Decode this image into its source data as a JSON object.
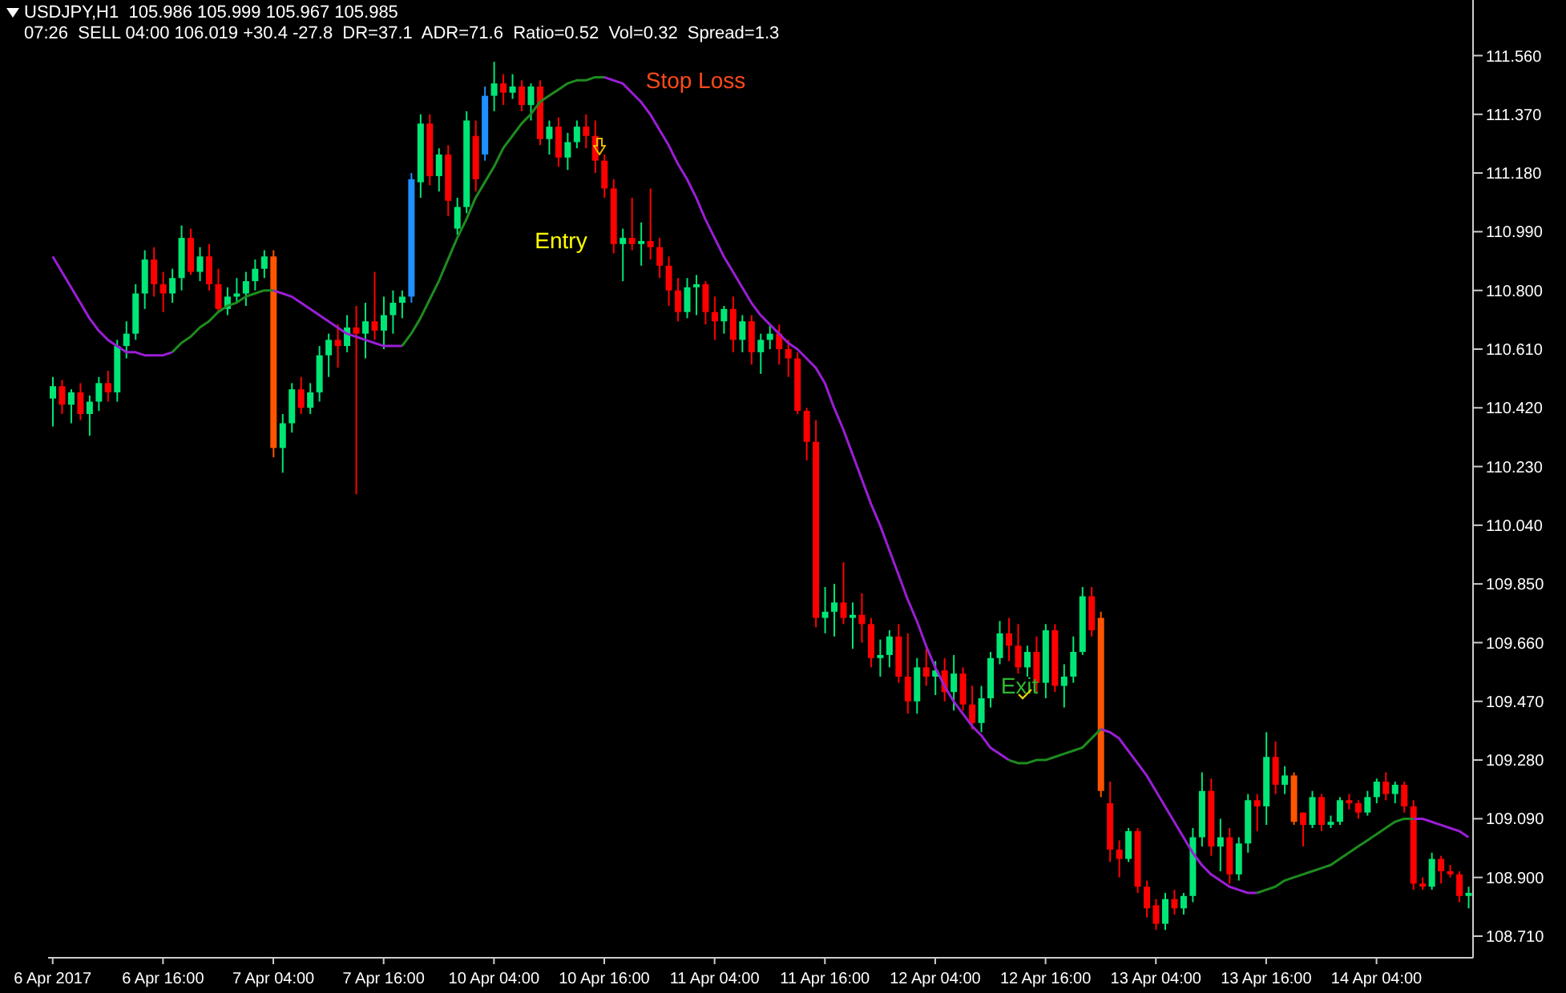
{
  "chart_data": {
    "type": "candlestick",
    "title": "USDJPY,H1  105.986 105.999 105.967 105.985",
    "subtitle": "07:26  SELL 04:00 106.019 +30.4 -27.8  DR=37.1  ADR=71.6  Ratio=0.52  Vol=0.32  Spread=1.3",
    "categories": [
      "6 Apr 2017",
      null,
      null,
      null,
      null,
      null,
      null,
      null,
      null,
      null,
      null,
      null,
      "6 Apr 16:00",
      null,
      null,
      null,
      null,
      null,
      null,
      null,
      null,
      null,
      null,
      null,
      "7 Apr 04:00",
      null,
      null,
      null,
      null,
      null,
      null,
      null,
      null,
      null,
      null,
      null,
      "7 Apr 16:00",
      null,
      null,
      null,
      null,
      null,
      null,
      null,
      null,
      null,
      null,
      null,
      "10 Apr 04:00",
      null,
      null,
      null,
      null,
      null,
      null,
      null,
      null,
      null,
      null,
      null,
      "10 Apr 16:00",
      null,
      null,
      null,
      null,
      null,
      null,
      null,
      null,
      null,
      null,
      null,
      "11 Apr 04:00",
      null,
      null,
      null,
      null,
      null,
      null,
      null,
      null,
      null,
      null,
      null,
      "11 Apr 16:00",
      null,
      null,
      null,
      null,
      null,
      null,
      null,
      null,
      null,
      null,
      null,
      "12 Apr 04:00",
      null,
      null,
      null,
      null,
      null,
      null,
      null,
      null,
      null,
      null,
      null,
      "12 Apr 16:00",
      null,
      null,
      null,
      null,
      null,
      null,
      null,
      null,
      null,
      null,
      null,
      "13 Apr 04:00",
      null,
      null,
      null,
      null,
      null,
      null,
      null,
      null,
      null,
      null,
      null,
      "13 Apr 16:00",
      null,
      null,
      null,
      null,
      null,
      null,
      null,
      null,
      null,
      null,
      null,
      "14 Apr 04:00",
      null,
      null,
      null,
      null,
      null,
      null,
      null,
      null,
      null,
      null
    ],
    "series": [
      {
        "ohlc": [
          [
            110.45,
            110.52,
            110.36,
            110.49
          ],
          [
            110.49,
            110.51,
            110.4,
            110.43
          ],
          [
            110.43,
            110.48,
            110.37,
            110.47
          ],
          [
            110.47,
            110.5,
            110.38,
            110.4
          ],
          [
            110.4,
            110.46,
            110.33,
            110.44
          ],
          [
            110.44,
            110.52,
            110.41,
            110.5
          ],
          [
            110.5,
            110.54,
            110.44,
            110.47
          ],
          [
            110.47,
            110.64,
            110.44,
            110.62
          ],
          [
            110.62,
            110.7,
            110.58,
            110.66
          ],
          [
            110.66,
            110.82,
            110.64,
            110.79
          ],
          [
            110.79,
            110.93,
            110.74,
            110.9
          ],
          [
            110.9,
            110.94,
            110.78,
            110.82
          ],
          [
            110.82,
            110.86,
            110.73,
            110.79
          ],
          [
            110.79,
            110.87,
            110.76,
            110.84
          ],
          [
            110.84,
            111.01,
            110.8,
            110.97
          ],
          [
            110.97,
            111.0,
            110.85,
            110.86
          ],
          [
            110.86,
            110.94,
            110.83,
            110.91
          ],
          [
            110.91,
            110.95,
            110.8,
            110.82
          ],
          [
            110.82,
            110.87,
            110.73,
            110.74
          ],
          [
            110.74,
            110.81,
            110.72,
            110.78
          ],
          [
            110.78,
            110.84,
            110.76,
            110.79
          ],
          [
            110.79,
            110.86,
            110.75,
            110.83
          ],
          [
            110.83,
            110.9,
            110.8,
            110.87
          ],
          [
            110.87,
            110.93,
            110.84,
            110.91
          ],
          [
            110.91,
            110.93,
            110.26,
            110.29
          ],
          [
            110.29,
            110.4,
            110.21,
            110.37
          ],
          [
            110.37,
            110.5,
            110.34,
            110.48
          ],
          [
            110.48,
            110.52,
            110.4,
            110.42
          ],
          [
            110.42,
            110.5,
            110.4,
            110.47
          ],
          [
            110.47,
            110.62,
            110.44,
            110.59
          ],
          [
            110.59,
            110.66,
            110.52,
            110.64
          ],
          [
            110.64,
            110.69,
            110.55,
            110.62
          ],
          [
            110.62,
            110.72,
            110.6,
            110.68
          ],
          [
            110.68,
            110.75,
            110.14,
            110.66
          ],
          [
            110.66,
            110.76,
            110.58,
            110.7
          ],
          [
            110.7,
            110.86,
            110.64,
            110.67
          ],
          [
            110.67,
            110.78,
            110.61,
            110.72
          ],
          [
            110.72,
            110.8,
            110.66,
            110.76
          ],
          [
            110.76,
            110.8,
            110.71,
            110.78
          ],
          [
            110.78,
            111.18,
            110.76,
            111.16
          ],
          [
            111.15,
            111.37,
            111.1,
            111.34
          ],
          [
            111.34,
            111.37,
            111.14,
            111.17
          ],
          [
            111.17,
            111.26,
            111.12,
            111.24
          ],
          [
            111.24,
            111.27,
            111.04,
            111.09
          ],
          [
            111.0,
            111.1,
            110.98,
            111.07
          ],
          [
            111.07,
            111.38,
            111.05,
            111.35
          ],
          [
            111.3,
            111.35,
            111.12,
            111.16
          ],
          [
            111.24,
            111.46,
            111.22,
            111.43
          ],
          [
            111.43,
            111.54,
            111.38,
            111.47
          ],
          [
            111.47,
            111.5,
            111.4,
            111.44
          ],
          [
            111.44,
            111.5,
            111.42,
            111.46
          ],
          [
            111.46,
            111.48,
            111.38,
            111.4
          ],
          [
            111.4,
            111.47,
            111.35,
            111.46
          ],
          [
            111.46,
            111.48,
            111.27,
            111.29
          ],
          [
            111.29,
            111.35,
            111.24,
            111.33
          ],
          [
            111.33,
            111.36,
            111.2,
            111.23
          ],
          [
            111.23,
            111.31,
            111.19,
            111.28
          ],
          [
            111.28,
            111.35,
            111.26,
            111.33
          ],
          [
            111.33,
            111.37,
            111.26,
            111.3
          ],
          [
            111.3,
            111.35,
            111.18,
            111.22
          ],
          [
            111.22,
            111.24,
            111.1,
            111.13
          ],
          [
            111.13,
            111.16,
            110.92,
            110.95
          ],
          [
            110.95,
            111.0,
            110.83,
            110.97
          ],
          [
            110.97,
            111.1,
            110.93,
            110.95
          ],
          [
            110.95,
            111.02,
            110.88,
            110.96
          ],
          [
            110.96,
            111.13,
            110.9,
            110.94
          ],
          [
            110.94,
            110.97,
            110.84,
            110.88
          ],
          [
            110.88,
            110.91,
            110.75,
            110.8
          ],
          [
            110.8,
            110.84,
            110.7,
            110.73
          ],
          [
            110.73,
            110.84,
            110.71,
            110.81
          ],
          [
            110.81,
            110.85,
            110.72,
            110.82
          ],
          [
            110.82,
            110.83,
            110.69,
            110.73
          ],
          [
            110.73,
            110.78,
            110.64,
            110.7
          ],
          [
            110.7,
            110.75,
            110.66,
            110.74
          ],
          [
            110.74,
            110.78,
            110.6,
            110.64
          ],
          [
            110.64,
            110.72,
            110.6,
            110.7
          ],
          [
            110.7,
            110.72,
            110.56,
            110.6
          ],
          [
            110.6,
            110.66,
            110.53,
            110.64
          ],
          [
            110.64,
            110.69,
            110.61,
            110.66
          ],
          [
            110.66,
            110.69,
            110.56,
            110.61
          ],
          [
            110.61,
            110.64,
            110.52,
            110.58
          ],
          [
            110.58,
            110.6,
            110.4,
            110.41
          ],
          [
            110.41,
            110.42,
            110.25,
            110.31
          ],
          [
            110.31,
            110.38,
            109.71,
            109.74
          ],
          [
            109.74,
            109.84,
            109.69,
            109.76
          ],
          [
            109.76,
            109.85,
            109.68,
            109.79
          ],
          [
            109.79,
            109.92,
            109.72,
            109.74
          ],
          [
            109.74,
            109.79,
            109.64,
            109.75
          ],
          [
            109.75,
            109.82,
            109.66,
            109.72
          ],
          [
            109.72,
            109.74,
            109.58,
            109.61
          ],
          [
            109.61,
            109.67,
            109.55,
            109.62
          ],
          [
            109.62,
            109.7,
            109.58,
            109.68
          ],
          [
            109.68,
            109.72,
            109.53,
            109.55
          ],
          [
            109.55,
            109.69,
            109.43,
            109.47
          ],
          [
            109.47,
            109.61,
            109.43,
            109.58
          ],
          [
            109.58,
            109.64,
            109.52,
            109.55
          ],
          [
            109.55,
            109.6,
            109.49,
            109.57
          ],
          [
            109.57,
            109.61,
            109.47,
            109.5
          ],
          [
            109.5,
            109.62,
            109.44,
            109.56
          ],
          [
            109.56,
            109.58,
            109.44,
            109.46
          ],
          [
            109.46,
            109.52,
            109.38,
            109.4
          ],
          [
            109.4,
            109.52,
            109.37,
            109.48
          ],
          [
            109.48,
            109.63,
            109.45,
            109.61
          ],
          [
            109.61,
            109.73,
            109.59,
            109.69
          ],
          [
            109.69,
            109.74,
            109.6,
            109.65
          ],
          [
            109.65,
            109.72,
            109.56,
            109.58
          ],
          [
            109.58,
            109.65,
            109.55,
            109.63
          ],
          [
            109.63,
            109.68,
            109.5,
            109.53
          ],
          [
            109.53,
            109.72,
            109.48,
            109.7
          ],
          [
            109.7,
            109.72,
            109.5,
            109.52
          ],
          [
            109.52,
            109.59,
            109.45,
            109.55
          ],
          [
            109.55,
            109.68,
            109.53,
            109.63
          ],
          [
            109.63,
            109.84,
            109.62,
            109.81
          ],
          [
            109.81,
            109.84,
            109.68,
            109.7
          ],
          [
            109.74,
            109.76,
            109.16,
            109.18
          ],
          [
            109.14,
            109.21,
            108.95,
            108.99
          ],
          [
            108.99,
            109.02,
            108.9,
            108.96
          ],
          [
            108.96,
            109.06,
            108.95,
            109.05
          ],
          [
            109.05,
            109.06,
            108.85,
            108.87
          ],
          [
            108.87,
            108.89,
            108.77,
            108.8
          ],
          [
            108.81,
            108.83,
            108.73,
            108.75
          ],
          [
            108.75,
            108.85,
            108.73,
            108.83
          ],
          [
            108.83,
            108.86,
            108.78,
            108.8
          ],
          [
            108.8,
            108.85,
            108.78,
            108.84
          ],
          [
            108.84,
            109.06,
            108.82,
            109.03
          ],
          [
            109.03,
            109.24,
            109.0,
            109.18
          ],
          [
            109.18,
            109.22,
            108.97,
            109.0
          ],
          [
            109.0,
            109.09,
            108.92,
            109.03
          ],
          [
            109.03,
            109.06,
            108.88,
            108.91
          ],
          [
            108.91,
            109.03,
            108.89,
            109.01
          ],
          [
            109.01,
            109.17,
            108.98,
            109.15
          ],
          [
            109.15,
            109.17,
            109.05,
            109.13
          ],
          [
            109.13,
            109.37,
            109.07,
            109.29
          ],
          [
            109.29,
            109.34,
            109.17,
            109.2
          ],
          [
            109.2,
            109.26,
            109.17,
            109.23
          ],
          [
            109.23,
            109.24,
            109.07,
            109.08
          ],
          [
            109.11,
            109.11,
            109.0,
            109.07
          ],
          [
            109.07,
            109.18,
            109.06,
            109.16
          ],
          [
            109.16,
            109.17,
            109.05,
            109.07
          ],
          [
            109.07,
            109.1,
            109.06,
            109.08
          ],
          [
            109.08,
            109.16,
            109.07,
            109.15
          ],
          [
            109.15,
            109.17,
            109.12,
            109.14
          ],
          [
            109.14,
            109.15,
            109.09,
            109.11
          ],
          [
            109.11,
            109.18,
            109.1,
            109.16
          ],
          [
            109.16,
            109.22,
            109.14,
            109.21
          ],
          [
            109.21,
            109.24,
            109.15,
            109.17
          ],
          [
            109.17,
            109.21,
            109.14,
            109.2
          ],
          [
            109.2,
            109.21,
            109.11,
            109.13
          ],
          [
            109.13,
            109.15,
            108.86,
            108.88
          ],
          [
            108.88,
            108.9,
            108.86,
            108.87
          ],
          [
            108.87,
            108.98,
            108.86,
            108.96
          ],
          [
            108.96,
            108.97,
            108.88,
            108.92
          ],
          [
            108.92,
            108.94,
            108.9,
            108.91
          ],
          [
            108.91,
            108.92,
            108.82,
            108.84
          ],
          [
            108.84,
            108.87,
            108.8,
            108.85
          ]
        ],
        "colors": [
          "#00e676",
          "#ff0000",
          "#00e676",
          "#ff0000",
          "#00e676",
          "#00e676",
          "#ff0000",
          "#00e676",
          "#00e676",
          "#00e676",
          "#00e676",
          "#ff0000",
          "#ff0000",
          "#00e676",
          "#00e676",
          "#ff0000",
          "#00e676",
          "#ff0000",
          "#ff0000",
          "#00e676",
          "#00e676",
          "#00e676",
          "#00e676",
          "#00e676",
          "#ff5500",
          "#00e676",
          "#00e676",
          "#ff0000",
          "#00e676",
          "#00e676",
          "#00e676",
          "#ff0000",
          "#00e676",
          "#ff0000",
          "#00e676",
          "#ff0000",
          "#00e676",
          "#00e676",
          "#00e676",
          "#1e90ff",
          "#00e676",
          "#ff0000",
          "#00e676",
          "#ff0000",
          "#00e676",
          "#00e676",
          "#ff0000",
          "#1e90ff",
          "#00e676",
          "#ff0000",
          "#00e676",
          "#ff0000",
          "#00e676",
          "#ff0000",
          "#00e676",
          "#ff0000",
          "#00e676",
          "#00e676",
          "#ff0000",
          "#ff0000",
          "#ff0000",
          "#ff0000",
          "#00e676",
          "#ff0000",
          "#00e676",
          "#ff0000",
          "#ff0000",
          "#ff0000",
          "#ff0000",
          "#00e676",
          "#00e676",
          "#ff0000",
          "#ff0000",
          "#00e676",
          "#ff0000",
          "#00e676",
          "#ff0000",
          "#00e676",
          "#00e676",
          "#ff0000",
          "#ff0000",
          "#ff0000",
          "#ff0000",
          "#ff0000",
          "#00e676",
          "#00e676",
          "#ff0000",
          "#00e676",
          "#ff0000",
          "#ff0000",
          "#00e676",
          "#00e676",
          "#ff0000",
          "#ff0000",
          "#00e676",
          "#ff0000",
          "#00e676",
          "#ff0000",
          "#00e676",
          "#ff0000",
          "#ff0000",
          "#00e676",
          "#00e676",
          "#00e676",
          "#ff0000",
          "#ff0000",
          "#00e676",
          "#ff0000",
          "#00e676",
          "#ff0000",
          "#00e676",
          "#00e676",
          "#00e676",
          "#ff0000",
          "#ff5500",
          "#ff0000",
          "#ff0000",
          "#00e676",
          "#ff0000",
          "#ff0000",
          "#ff0000",
          "#00e676",
          "#ff0000",
          "#00e676",
          "#00e676",
          "#00e676",
          "#ff0000",
          "#00e676",
          "#ff0000",
          "#00e676",
          "#00e676",
          "#ff0000",
          "#00e676",
          "#ff0000",
          "#00e676",
          "#ff5500",
          "#ff0000",
          "#00e676",
          "#ff0000",
          "#00e676",
          "#00e676",
          "#ff0000",
          "#ff0000",
          "#00e676",
          "#00e676",
          "#ff0000",
          "#00e676",
          "#ff0000",
          "#ff0000",
          "#ff0000",
          "#00e676",
          "#ff0000",
          "#ff0000",
          "#ff0000",
          "#00e676"
        ]
      },
      {
        "type": "line",
        "color": "#9b1ed6",
        "values": [
          110.91,
          110.86,
          110.81,
          110.76,
          110.71,
          110.67,
          110.64,
          110.62,
          110.6,
          110.6,
          110.59,
          110.59,
          110.59,
          110.6,
          null,
          null,
          null,
          null,
          null,
          null,
          null,
          null,
          null,
          null,
          110.8,
          110.79,
          110.78,
          110.76,
          110.74,
          110.72,
          110.7,
          110.68,
          110.66,
          110.65,
          110.64,
          110.63,
          110.62,
          110.62,
          110.62,
          null,
          null,
          null,
          null,
          null,
          null,
          null,
          null,
          null,
          null,
          null,
          null,
          null,
          null,
          null,
          null,
          null,
          null,
          null,
          null,
          null,
          111.49,
          111.48,
          111.47,
          111.44,
          111.41,
          111.37,
          111.32,
          111.27,
          111.21,
          111.16,
          111.1,
          111.03,
          110.97,
          110.91,
          110.86,
          110.81,
          110.76,
          110.72,
          110.69,
          110.66,
          110.63,
          110.61,
          110.58,
          110.55,
          110.5,
          110.42,
          110.35,
          110.27,
          110.19,
          110.11,
          110.04,
          109.96,
          109.88,
          109.8,
          109.73,
          109.65,
          109.58,
          109.52,
          109.47,
          109.43,
          109.39,
          109.36,
          109.32,
          109.3,
          109.28,
          null,
          null,
          null,
          null,
          null,
          null,
          null,
          null,
          null,
          109.38,
          109.37,
          109.35,
          109.31,
          109.27,
          109.23,
          109.18,
          109.13,
          109.08,
          109.03,
          108.98,
          108.94,
          108.91,
          108.89,
          108.87,
          108.86,
          108.85,
          108.85,
          null,
          null,
          null,
          null,
          null,
          null,
          null,
          null,
          null,
          null,
          null,
          null,
          null,
          null,
          null,
          null,
          109.09,
          109.09,
          109.08,
          109.07,
          109.06,
          109.05,
          109.03
        ]
      },
      {
        "type": "line",
        "color": "#1e8c1e",
        "values": [
          null,
          null,
          null,
          null,
          null,
          null,
          null,
          null,
          null,
          null,
          null,
          null,
          null,
          110.6,
          110.63,
          110.65,
          110.68,
          110.7,
          110.73,
          110.75,
          110.76,
          110.78,
          110.79,
          110.8,
          110.8,
          null,
          null,
          null,
          null,
          null,
          null,
          null,
          null,
          null,
          null,
          null,
          null,
          null,
          110.62,
          110.66,
          110.71,
          110.77,
          110.83,
          110.9,
          110.97,
          111.03,
          111.1,
          111.15,
          111.2,
          111.26,
          111.3,
          111.34,
          111.37,
          111.41,
          111.43,
          111.45,
          111.47,
          111.48,
          111.48,
          111.49,
          111.49,
          null,
          null,
          null,
          null,
          null,
          null,
          null,
          null,
          null,
          null,
          null,
          null,
          null,
          null,
          null,
          null,
          null,
          null,
          null,
          null,
          null,
          null,
          null,
          null,
          null,
          null,
          null,
          null,
          null,
          null,
          null,
          null,
          null,
          null,
          null,
          null,
          null,
          null,
          null,
          null,
          null,
          null,
          null,
          109.28,
          109.27,
          109.27,
          109.28,
          109.28,
          109.29,
          109.3,
          109.31,
          109.32,
          109.35,
          109.38,
          null,
          null,
          null,
          null,
          null,
          null,
          null,
          null,
          null,
          null,
          null,
          null,
          null,
          null,
          null,
          null,
          108.85,
          108.86,
          108.87,
          108.89,
          108.9,
          108.91,
          108.92,
          108.93,
          108.94,
          108.96,
          108.98,
          109.0,
          109.02,
          109.04,
          109.06,
          109.08,
          109.09,
          109.09,
          null,
          null,
          null,
          null,
          null,
          null
        ]
      }
    ],
    "ylim": [
      108.64,
      111.74
    ],
    "yticks": [
      {
        "value": 108.71,
        "label": "108.710"
      },
      {
        "value": 108.9,
        "label": "108.900"
      },
      {
        "value": 109.09,
        "label": "109.090"
      },
      {
        "value": 109.28,
        "label": "109.280"
      },
      {
        "value": 109.47,
        "label": "109.470"
      },
      {
        "value": 109.66,
        "label": "109.660"
      },
      {
        "value": 109.85,
        "label": "109.850"
      },
      {
        "value": 110.04,
        "label": "110.040"
      },
      {
        "value": 110.23,
        "label": "110.230"
      },
      {
        "value": 110.42,
        "label": "110.420"
      },
      {
        "value": 110.61,
        "label": "110.610"
      },
      {
        "value": 110.8,
        "label": "110.800"
      },
      {
        "value": 110.99,
        "label": "110.990"
      },
      {
        "value": 111.18,
        "label": "111.180"
      },
      {
        "value": 111.37,
        "label": "111.370"
      },
      {
        "value": 111.56,
        "label": "111.560"
      }
    ],
    "annotations": [
      "Stop Loss",
      "Entry",
      "Exit"
    ]
  }
}
